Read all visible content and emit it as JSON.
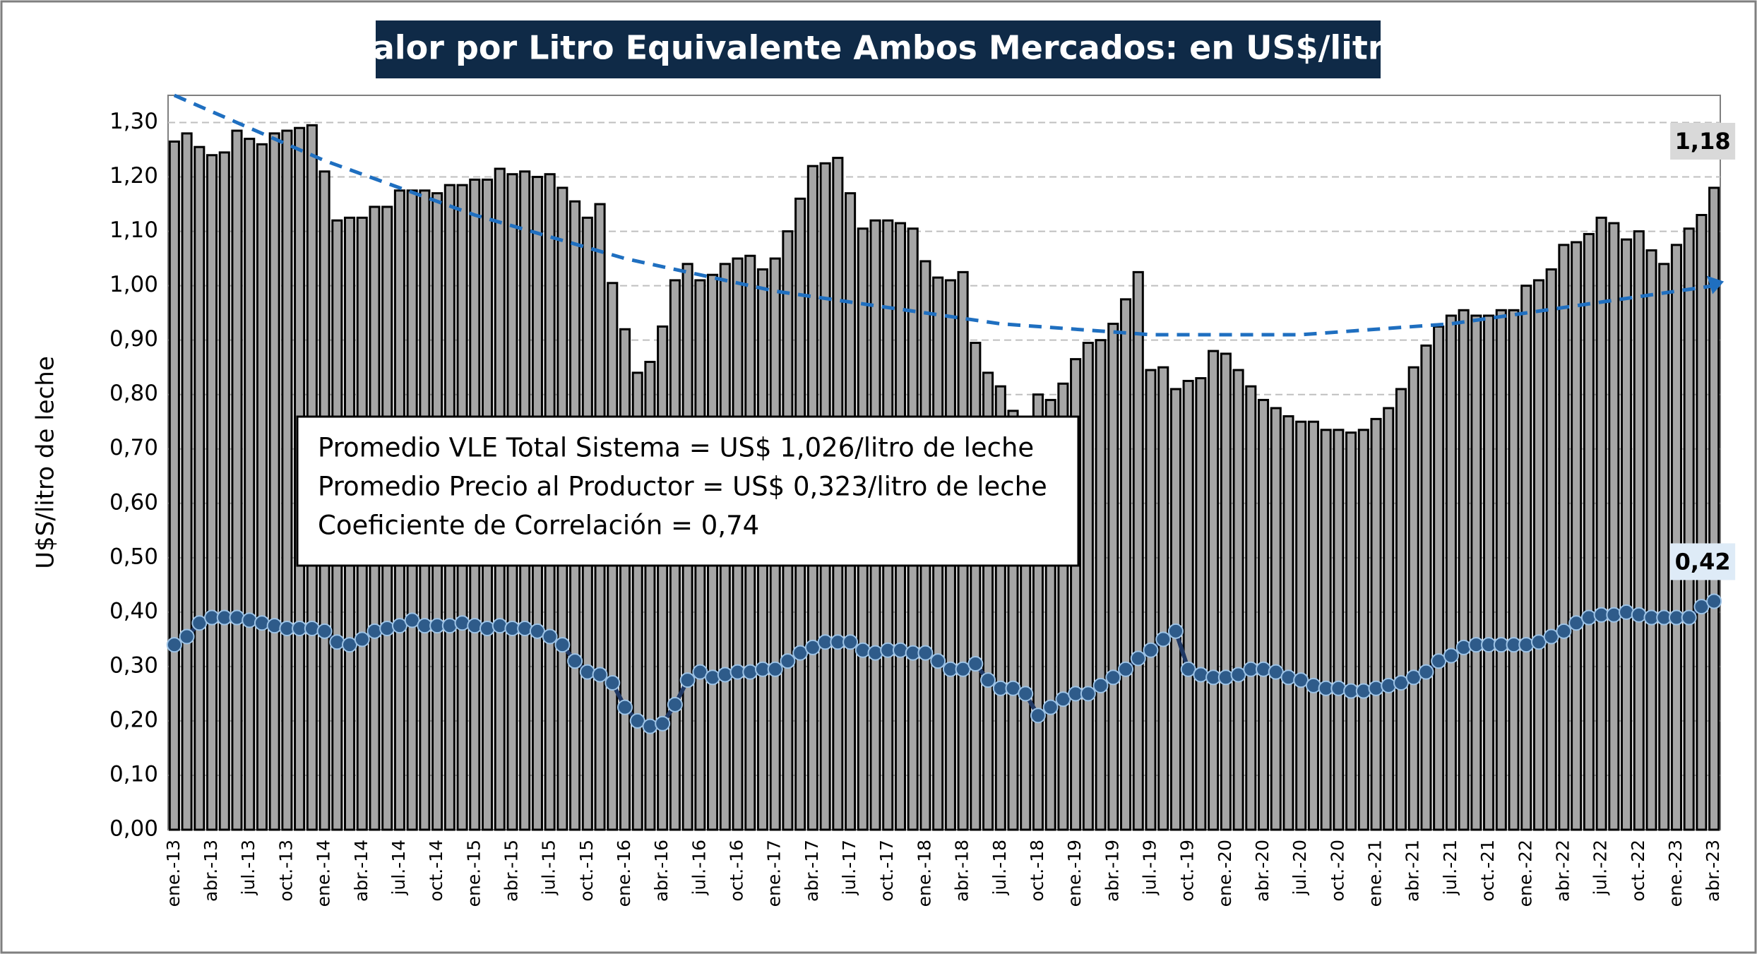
{
  "chart_data": {
    "type": "bar",
    "title": "Valor por Litro Equivalente Ambos Mercados: en US$/litro",
    "y_label": "U$S/litro de leche",
    "annotations": [
      "Promedio VLE Total Sistema = US$ 1,026/litro de leche",
      "Promedio Precio al Productor = US$ 0,323/litro de leche",
      "Coeficiente de Correlación = 0,74"
    ],
    "categories": [
      "ene.-13",
      null,
      null,
      "abr.-13",
      null,
      null,
      "jul.-13",
      null,
      null,
      "oct.-13",
      null,
      null,
      "ene.-14",
      null,
      null,
      "abr.-14",
      null,
      null,
      "jul.-14",
      null,
      null,
      "oct.-14",
      null,
      null,
      "ene.-15",
      null,
      null,
      "abr.-15",
      null,
      null,
      "jul.-15",
      null,
      null,
      "oct.-15",
      null,
      null,
      "ene.-16",
      null,
      null,
      "abr.-16",
      null,
      null,
      "jul.-16",
      null,
      null,
      "oct.-16",
      null,
      null,
      "ene.-17",
      null,
      null,
      "abr.-17",
      null,
      null,
      "jul.-17",
      null,
      null,
      "oct.-17",
      null,
      null,
      "ene.-18",
      null,
      null,
      "abr.-18",
      null,
      null,
      "jul.-18",
      null,
      null,
      "oct.-18",
      null,
      null,
      "ene.-19",
      null,
      null,
      "abr.-19",
      null,
      null,
      "jul.-19",
      null,
      null,
      "oct.-19",
      null,
      null,
      "ene.-20",
      null,
      null,
      "abr.-20",
      null,
      null,
      "jul.-20",
      null,
      null,
      "oct.-20",
      null,
      null,
      "ene.-21",
      null,
      null,
      "abr.-21",
      null,
      null,
      "jul.-21",
      null,
      null,
      "oct.-21",
      null,
      null,
      "ene.-22",
      null,
      null,
      "abr.-22",
      null,
      null,
      "jul.-22",
      null,
      null,
      "oct.-22",
      null,
      null,
      "ene.-23",
      null,
      null,
      "abr.-23"
    ],
    "series": [
      {
        "type": "bar",
        "color": "#a6a6a6",
        "values": [
          1.265,
          1.28,
          1.255,
          1.24,
          1.245,
          1.285,
          1.27,
          1.26,
          1.28,
          1.285,
          1.29,
          1.295,
          1.21,
          1.12,
          1.125,
          1.125,
          1.145,
          1.145,
          1.175,
          1.175,
          1.175,
          1.17,
          1.185,
          1.185,
          1.195,
          1.195,
          1.215,
          1.205,
          1.21,
          1.2,
          1.205,
          1.18,
          1.155,
          1.125,
          1.15,
          1.005,
          0.92,
          0.84,
          0.86,
          0.925,
          1.01,
          1.04,
          1.01,
          1.02,
          1.04,
          1.05,
          1.055,
          1.03,
          1.05,
          1.1,
          1.16,
          1.22,
          1.225,
          1.235,
          1.17,
          1.105,
          1.12,
          1.12,
          1.115,
          1.105,
          1.045,
          1.015,
          1.01,
          1.025,
          0.895,
          0.84,
          0.815,
          0.77,
          0.75,
          0.8,
          0.79,
          0.82,
          0.865,
          0.895,
          0.9,
          0.93,
          0.975,
          1.025,
          0.845,
          0.85,
          0.81,
          0.825,
          0.83,
          0.88,
          0.875,
          0.845,
          0.815,
          0.79,
          0.775,
          0.76,
          0.75,
          0.75,
          0.735,
          0.735,
          0.73,
          0.735,
          0.755,
          0.775,
          0.81,
          0.85,
          0.89,
          0.925,
          0.945,
          0.955,
          0.945,
          0.945,
          0.955,
          0.955,
          1.0,
          1.01,
          1.03,
          1.075,
          1.08,
          1.095,
          1.125,
          1.115,
          1.085,
          1.1,
          1.065,
          1.04,
          1.075,
          1.105,
          1.13,
          1.18
        ],
        "value_labels": [
          null,
          null,
          null,
          null,
          null,
          null,
          null,
          null,
          null,
          null,
          null,
          null,
          null,
          null,
          null,
          null,
          null,
          null,
          null,
          null,
          null,
          null,
          null,
          null,
          null,
          null,
          null,
          null,
          null,
          null,
          null,
          null,
          null,
          null,
          null,
          null,
          null,
          null,
          null,
          null,
          null,
          null,
          null,
          null,
          null,
          null,
          null,
          null,
          null,
          null,
          null,
          null,
          null,
          null,
          null,
          null,
          null,
          null,
          null,
          null,
          null,
          null,
          null,
          null,
          null,
          null,
          null,
          null,
          null,
          null,
          null,
          null,
          null,
          null,
          null,
          null,
          null,
          null,
          null,
          null,
          null,
          null,
          null,
          null,
          null,
          null,
          null,
          null,
          null,
          null,
          null,
          null,
          null,
          null,
          null,
          null,
          null,
          null,
          null,
          null,
          null,
          null,
          null,
          null,
          null,
          null,
          null,
          null,
          null,
          null,
          null,
          null,
          null,
          null,
          null,
          null,
          null,
          null,
          null,
          null,
          null,
          null,
          null,
          "1,18"
        ]
      },
      {
        "type": "line",
        "color": "#1f3864",
        "marker_color": "#2e5b8a",
        "values": [
          0.34,
          0.355,
          0.38,
          0.39,
          0.39,
          0.39,
          0.385,
          0.38,
          0.375,
          0.37,
          0.37,
          0.37,
          0.365,
          0.345,
          0.34,
          0.35,
          0.365,
          0.37,
          0.375,
          0.385,
          0.375,
          0.375,
          0.375,
          0.38,
          0.375,
          0.37,
          0.375,
          0.37,
          0.37,
          0.365,
          0.355,
          0.34,
          0.31,
          0.29,
          0.285,
          0.27,
          0.225,
          0.2,
          0.19,
          0.195,
          0.23,
          0.275,
          0.29,
          0.28,
          0.285,
          0.29,
          0.29,
          0.295,
          0.295,
          0.31,
          0.325,
          0.335,
          0.345,
          0.345,
          0.345,
          0.33,
          0.325,
          0.33,
          0.33,
          0.325,
          0.325,
          0.31,
          0.295,
          0.295,
          0.305,
          0.275,
          0.26,
          0.26,
          0.25,
          0.21,
          0.225,
          0.24,
          0.25,
          0.25,
          0.265,
          0.28,
          0.295,
          0.315,
          0.33,
          0.35,
          0.365,
          0.295,
          0.285,
          0.28,
          0.28,
          0.285,
          0.295,
          0.295,
          0.29,
          0.28,
          0.275,
          0.265,
          0.26,
          0.26,
          0.255,
          0.255,
          0.26,
          0.265,
          0.27,
          0.28,
          0.29,
          0.31,
          0.32,
          0.335,
          0.34,
          0.34,
          0.34,
          0.34,
          0.34,
          0.345,
          0.355,
          0.365,
          0.38,
          0.39,
          0.395,
          0.395,
          0.4,
          0.395,
          0.39,
          0.39,
          0.39,
          0.39,
          0.41,
          0.42
        ],
        "value_labels": [
          null,
          null,
          null,
          null,
          null,
          null,
          null,
          null,
          null,
          null,
          null,
          null,
          null,
          null,
          null,
          null,
          null,
          null,
          null,
          null,
          null,
          null,
          null,
          null,
          null,
          null,
          null,
          null,
          null,
          null,
          null,
          null,
          null,
          null,
          null,
          null,
          null,
          null,
          null,
          null,
          null,
          null,
          null,
          null,
          null,
          null,
          null,
          null,
          null,
          null,
          null,
          null,
          null,
          null,
          null,
          null,
          null,
          null,
          null,
          null,
          null,
          null,
          null,
          null,
          null,
          null,
          null,
          null,
          null,
          null,
          null,
          null,
          null,
          null,
          null,
          null,
          null,
          null,
          null,
          null,
          null,
          null,
          null,
          null,
          null,
          null,
          null,
          null,
          null,
          null,
          null,
          null,
          null,
          null,
          null,
          null,
          null,
          null,
          null,
          null,
          null,
          null,
          null,
          null,
          null,
          null,
          null,
          null,
          null,
          null,
          null,
          null,
          null,
          null,
          null,
          null,
          null,
          null,
          null,
          null,
          null,
          null,
          null,
          "0,42"
        ]
      }
    ],
    "trend": {
      "color": "#1f6fc0",
      "dashed": true,
      "x": [
        0,
        6,
        12,
        18,
        24,
        30,
        36,
        42,
        48,
        54,
        60,
        66,
        72,
        78,
        84,
        90,
        96,
        102,
        108,
        114,
        120,
        123
      ],
      "values": [
        1.35,
        1.29,
        1.23,
        1.18,
        1.13,
        1.09,
        1.05,
        1.02,
        0.99,
        0.97,
        0.95,
        0.93,
        0.92,
        0.91,
        0.91,
        0.91,
        0.92,
        0.93,
        0.95,
        0.97,
        0.99,
        1.0
      ]
    },
    "ylim": [
      0,
      1.35
    ],
    "yticks": [
      {
        "value": 0,
        "label": "0,00"
      },
      {
        "value": 0.1,
        "label": "0,10"
      },
      {
        "value": 0.2,
        "label": "0,20"
      },
      {
        "value": 0.3,
        "label": "0,30"
      },
      {
        "value": 0.4,
        "label": "0,40"
      },
      {
        "value": 0.5,
        "label": "0,50"
      },
      {
        "value": 0.6,
        "label": "0,60"
      },
      {
        "value": 0.7,
        "label": "0,70"
      },
      {
        "value": 0.8,
        "label": "0,80"
      },
      {
        "value": 0.9,
        "label": "0,90"
      },
      {
        "value": 1.0,
        "label": "1,00"
      },
      {
        "value": 1.1,
        "label": "1,10"
      },
      {
        "value": 1.2,
        "label": "1,20"
      },
      {
        "value": 1.3,
        "label": "1,30"
      }
    ],
    "grid": true
  }
}
